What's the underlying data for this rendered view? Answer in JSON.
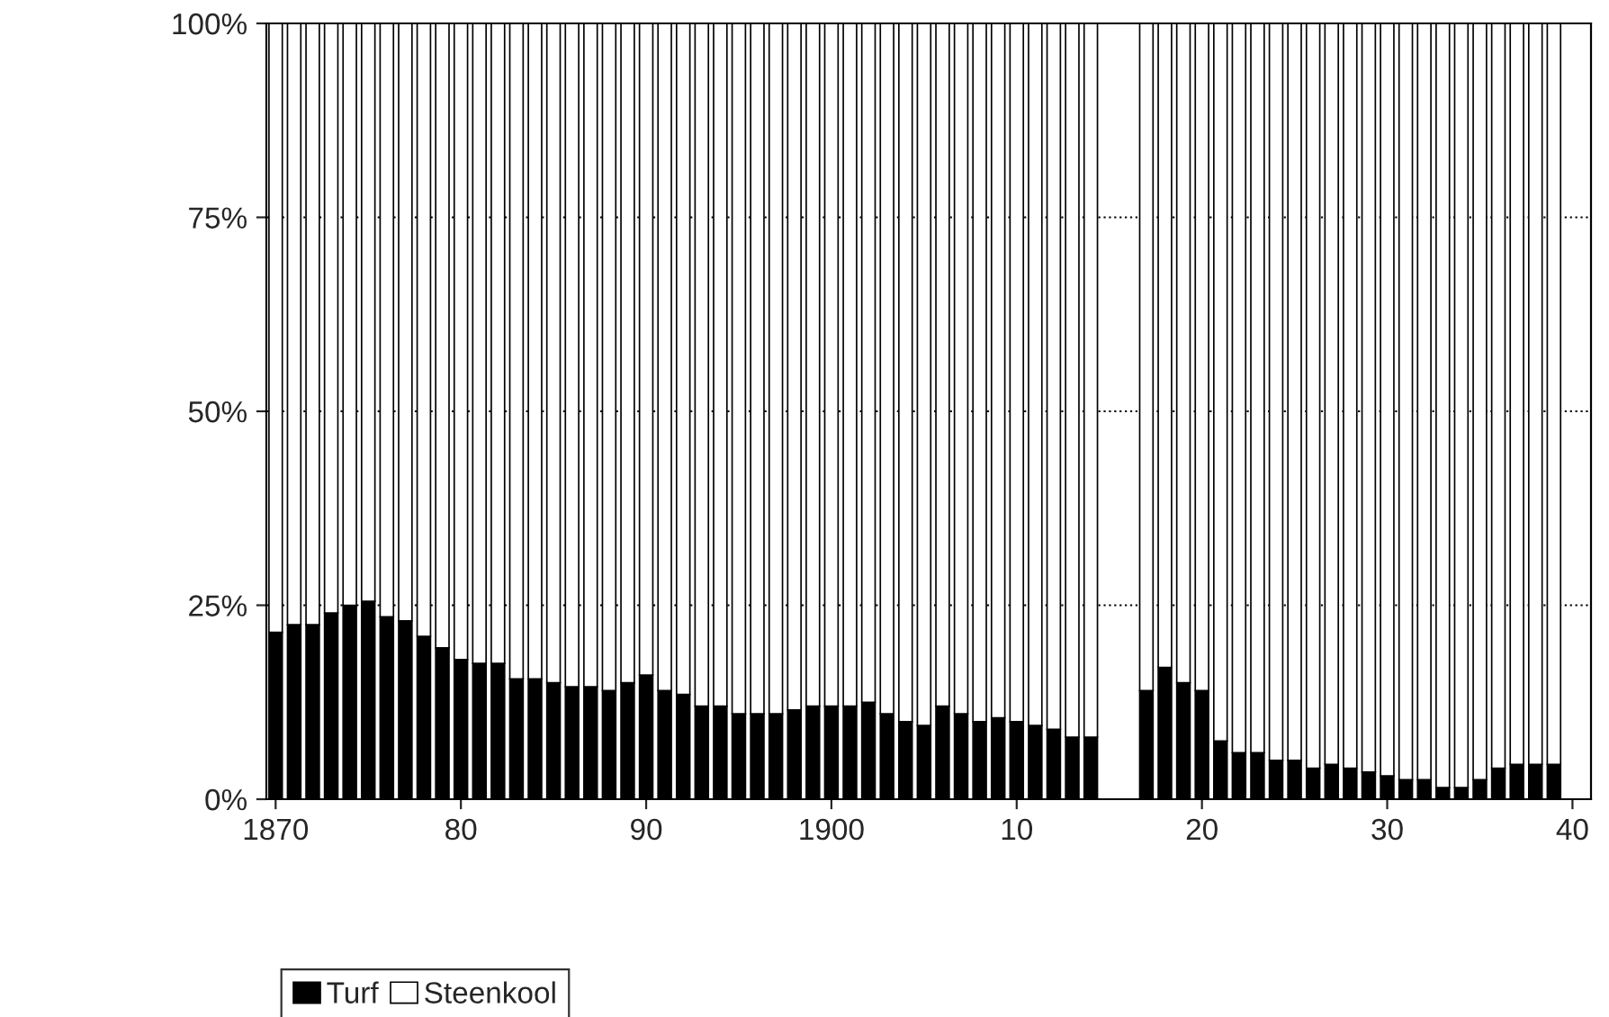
{
  "chart_data": {
    "type": "bar",
    "stacked": true,
    "x": [
      1870,
      1871,
      1872,
      1873,
      1874,
      1875,
      1876,
      1877,
      1878,
      1879,
      1880,
      1881,
      1882,
      1883,
      1884,
      1885,
      1886,
      1887,
      1888,
      1889,
      1890,
      1891,
      1892,
      1893,
      1894,
      1895,
      1896,
      1897,
      1898,
      1899,
      1900,
      1901,
      1902,
      1903,
      1904,
      1905,
      1906,
      1907,
      1908,
      1909,
      1910,
      1911,
      1912,
      1913,
      1914,
      1915,
      1916,
      1917,
      1918,
      1919,
      1920,
      1921,
      1922,
      1923,
      1924,
      1925,
      1926,
      1927,
      1928,
      1929,
      1930,
      1931,
      1932,
      1933,
      1934,
      1935,
      1936,
      1937,
      1938,
      1939
    ],
    "series": [
      {
        "name": "Turf",
        "color": "#000000",
        "values": [
          21.5,
          22.5,
          22.5,
          24,
          25,
          25.5,
          23.5,
          23,
          21,
          19.5,
          18,
          17.5,
          17.5,
          15.5,
          15.5,
          15,
          14.5,
          14.5,
          14,
          15,
          16,
          14,
          13.5,
          12,
          12,
          11,
          11,
          11,
          11.5,
          12,
          12,
          12,
          12.5,
          11,
          10,
          9.5,
          12,
          11,
          10,
          10.5,
          10,
          9.5,
          9,
          8,
          8,
          null,
          null,
          14,
          17,
          15,
          14,
          7.5,
          6,
          6,
          5,
          5,
          4,
          4.5,
          4,
          3.5,
          3,
          2.5,
          2.5,
          1.5,
          1.5,
          2.5,
          4,
          4.5,
          4.5,
          4.5
        ]
      },
      {
        "name": "Steenkool",
        "color": "#ffffff",
        "values": [
          78.5,
          77.5,
          77.5,
          76,
          75,
          74.5,
          76.5,
          77,
          79,
          80.5,
          82,
          82.5,
          82.5,
          84.5,
          84.5,
          85,
          85.5,
          85.5,
          86,
          85,
          84,
          86,
          86.5,
          88,
          88,
          89,
          89,
          89,
          88.5,
          88,
          88,
          88,
          87.5,
          89,
          90,
          90.5,
          88,
          89,
          90,
          89.5,
          90,
          90.5,
          91,
          92,
          92,
          null,
          null,
          86,
          83,
          85,
          86,
          92.5,
          94,
          94,
          95,
          95,
          96,
          95.5,
          96,
          96.5,
          97,
          97.5,
          97.5,
          98.5,
          98.5,
          97.5,
          96,
          95.5,
          95.5,
          95.5
        ]
      }
    ],
    "xlim": [
      1869.5,
      1941
    ],
    "xticks": [
      1870,
      {
        "value": 1880,
        "label": "80"
      },
      {
        "value": 1890,
        "label": "90"
      },
      1900,
      {
        "value": 1910,
        "label": "10"
      },
      {
        "value": 1920,
        "label": "20"
      },
      {
        "value": 1930,
        "label": "30"
      },
      {
        "value": 1940,
        "label": "40"
      }
    ],
    "ylim": [
      0,
      100
    ],
    "yticks": [
      {
        "value": 0,
        "label": "0%"
      },
      {
        "value": 25,
        "label": "25%"
      },
      {
        "value": 50,
        "label": "50%"
      },
      {
        "value": 75,
        "label": "75%"
      },
      {
        "value": 100,
        "label": "100%"
      }
    ],
    "grid": "y",
    "legend": "bottom left"
  }
}
